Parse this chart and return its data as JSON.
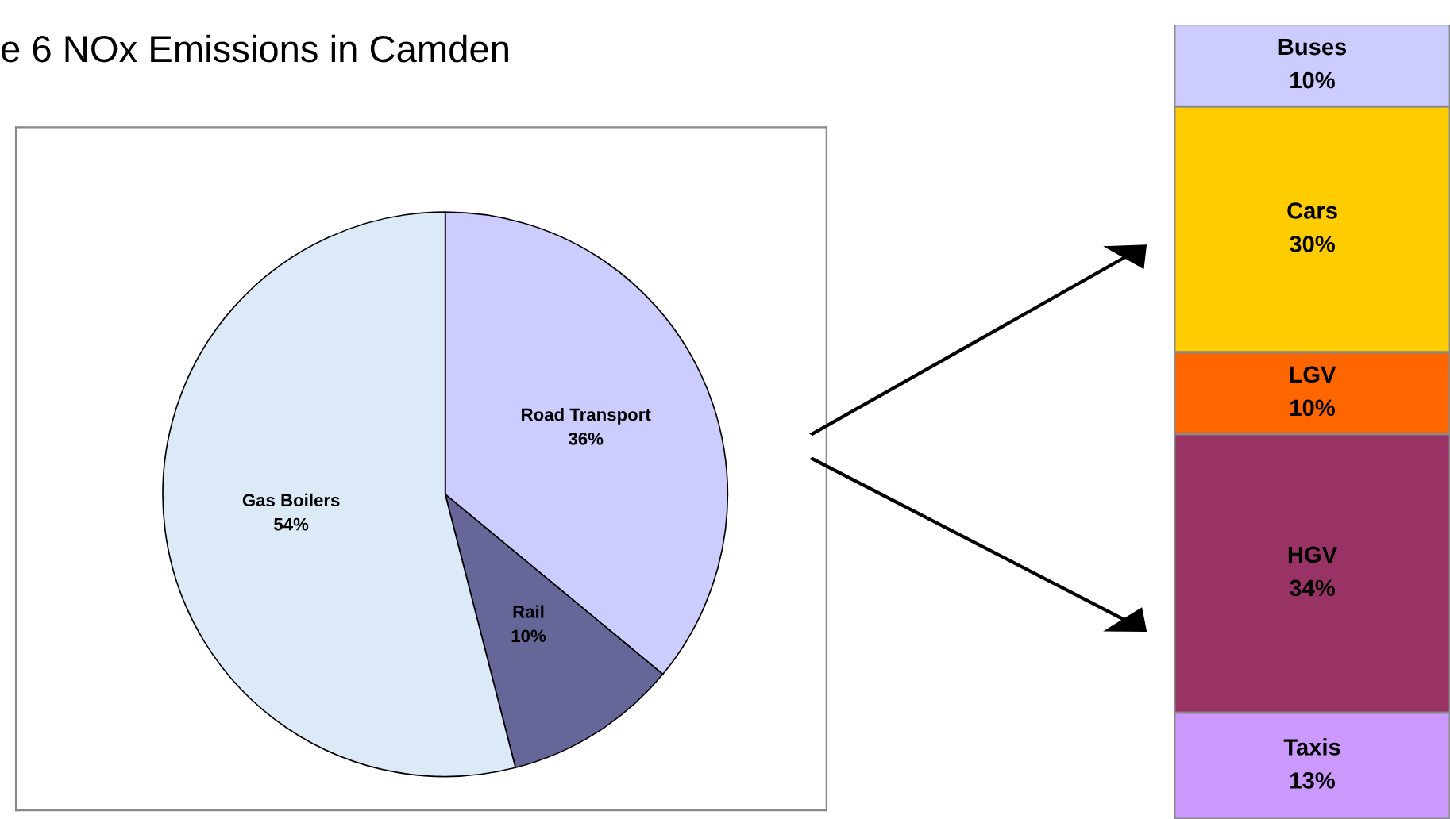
{
  "chart_data": [
    {
      "type": "pie",
      "title": "e 6 NOx Emissions in Camden",
      "categories": [
        "Road Transport",
        "Rail",
        "Gas Boilers"
      ],
      "values": [
        36,
        10,
        54
      ],
      "value_labels": [
        "36%",
        "10%",
        "54%"
      ],
      "colors": [
        "#ccccff",
        "#666699",
        "#dce9f7"
      ]
    },
    {
      "type": "bar",
      "stacked": true,
      "categories": [
        null
      ],
      "series": [
        {
          "name": "Taxis",
          "color": "#cc99ff",
          "values": [
            13
          ],
          "value_labels": [
            "13%"
          ]
        },
        {
          "name": "HGV",
          "color": "#993366",
          "values": [
            34
          ],
          "value_labels": [
            "34%"
          ]
        },
        {
          "name": "LGV",
          "color": "#ff6600",
          "values": [
            10
          ],
          "value_labels": [
            "10%"
          ]
        },
        {
          "name": "Cars",
          "color": "#ffcc00",
          "values": [
            30
          ],
          "value_labels": [
            "30%"
          ]
        },
        {
          "name": "Buses",
          "color": "#ccccff",
          "values": [
            10
          ],
          "value_labels": [
            "10%"
          ]
        }
      ]
    }
  ]
}
